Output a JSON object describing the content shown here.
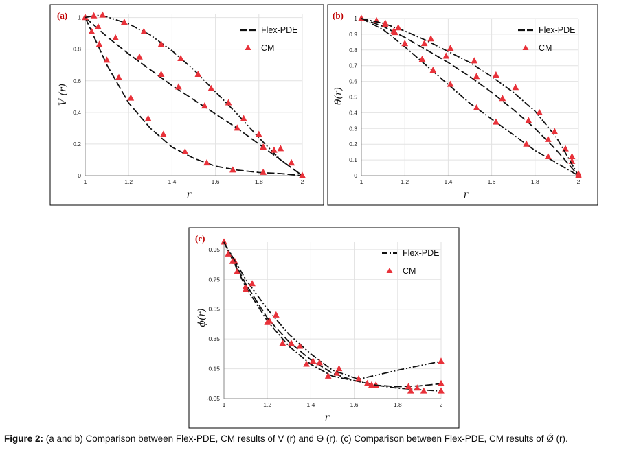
{
  "figure": {
    "caption_label": "Figure 2:",
    "caption_text": " (a and b) Comparison between Flex-PDE, CM results of V (r) and Ɵ (r). (c) Comparison between Flex-PDE, CM results of Ǿ (r)."
  },
  "colors": {
    "marker": "#e8323a",
    "line": "#111111",
    "frame": "#000000",
    "grid": "#e2e2e2"
  },
  "chart_data": [
    {
      "panel_label": "(a)",
      "type": "line",
      "xlabel": "r",
      "ylabel": "V (r)",
      "xlim": [
        1,
        2
      ],
      "ylim": [
        0,
        1.02
      ],
      "x_ticks": [
        "1",
        "1.2",
        "1.4",
        "1.6",
        "1.8",
        "2"
      ],
      "y_ticks": [
        "0",
        "0.2",
        "0.4",
        "0.6",
        "0.8",
        "1"
      ],
      "grid": true,
      "legend": {
        "position": "top-right",
        "entries": [
          "Flex-PDE",
          "CM"
        ]
      },
      "series": [
        {
          "style": "dash",
          "line": [
            [
              1,
              1
            ],
            [
              1.1,
              0.7
            ],
            [
              1.2,
              0.46
            ],
            [
              1.3,
              0.3
            ],
            [
              1.4,
              0.18
            ],
            [
              1.5,
              0.11
            ],
            [
              1.6,
              0.06
            ],
            [
              1.7,
              0.035
            ],
            [
              1.8,
              0.02
            ],
            [
              1.9,
              0.013
            ],
            [
              2,
              0
            ]
          ],
          "markers": [
            [
              1,
              1
            ],
            [
              1.03,
              0.91
            ],
            [
              1.065,
              0.83
            ],
            [
              1.1,
              0.73
            ],
            [
              1.155,
              0.62
            ],
            [
              1.21,
              0.49
            ],
            [
              1.29,
              0.36
            ],
            [
              1.36,
              0.26
            ],
            [
              1.46,
              0.15
            ],
            [
              1.56,
              0.08
            ],
            [
              1.68,
              0.035
            ],
            [
              1.82,
              0.02
            ],
            [
              2,
              0
            ]
          ]
        },
        {
          "style": "dash",
          "line": [
            [
              1,
              1
            ],
            [
              1.1,
              0.88
            ],
            [
              1.2,
              0.77
            ],
            [
              1.3,
              0.67
            ],
            [
              1.4,
              0.57
            ],
            [
              1.5,
              0.48
            ],
            [
              1.6,
              0.39
            ],
            [
              1.7,
              0.3
            ],
            [
              1.8,
              0.2
            ],
            [
              1.9,
              0.1
            ],
            [
              2,
              0
            ]
          ],
          "markers": [
            [
              1,
              1
            ],
            [
              1.06,
              0.94
            ],
            [
              1.14,
              0.87
            ],
            [
              1.25,
              0.75
            ],
            [
              1.35,
              0.64
            ],
            [
              1.43,
              0.56
            ],
            [
              1.55,
              0.44
            ],
            [
              1.7,
              0.3
            ],
            [
              1.82,
              0.18
            ],
            [
              1.9,
              0.17
            ],
            [
              1.95,
              0.08
            ],
            [
              2,
              0
            ]
          ]
        },
        {
          "style": "dashdotdot",
          "line": [
            [
              1,
              1
            ],
            [
              1.05,
              1.015
            ],
            [
              1.1,
              1.005
            ],
            [
              1.2,
              0.96
            ],
            [
              1.3,
              0.89
            ],
            [
              1.4,
              0.79
            ],
            [
              1.5,
              0.67
            ],
            [
              1.6,
              0.53
            ],
            [
              1.7,
              0.39
            ],
            [
              1.8,
              0.24
            ],
            [
              1.9,
              0.1
            ],
            [
              2,
              0
            ]
          ],
          "markers": [
            [
              1.04,
              1.01
            ],
            [
              1.08,
              1.015
            ],
            [
              1.18,
              0.97
            ],
            [
              1.27,
              0.91
            ],
            [
              1.35,
              0.83
            ],
            [
              1.44,
              0.74
            ],
            [
              1.52,
              0.64
            ],
            [
              1.58,
              0.55
            ],
            [
              1.66,
              0.46
            ],
            [
              1.73,
              0.36
            ],
            [
              1.8,
              0.26
            ],
            [
              1.87,
              0.16
            ],
            [
              1.95,
              0.08
            ],
            [
              2,
              0
            ]
          ]
        }
      ]
    },
    {
      "panel_label": "(b)",
      "type": "line",
      "xlabel": "r",
      "ylabel": "θ(r)",
      "xlim": [
        1,
        2
      ],
      "ylim": [
        0,
        1
      ],
      "x_ticks": [
        "1",
        "1.2",
        "1.4",
        "1.6",
        "1.8",
        "2"
      ],
      "y_ticks": [
        "0",
        "0.1",
        "0.2",
        "0.3",
        "0.4",
        "0.5",
        "0.6",
        "0.7",
        "0.8",
        "0.9",
        "1"
      ],
      "grid": true,
      "legend": {
        "position": "top-right",
        "entries": [
          "Flex-PDE",
          "CM"
        ]
      },
      "series": [
        {
          "style": "dashdot",
          "line": [
            [
              1,
              1
            ],
            [
              1.1,
              0.93
            ],
            [
              1.2,
              0.82
            ],
            [
              1.3,
              0.7
            ],
            [
              1.4,
              0.58
            ],
            [
              1.5,
              0.46
            ],
            [
              1.6,
              0.36
            ],
            [
              1.7,
              0.26
            ],
            [
              1.8,
              0.16
            ],
            [
              1.9,
              0.08
            ],
            [
              2,
              0
            ]
          ],
          "markers": [
            [
              1,
              1
            ],
            [
              1.07,
              0.985
            ],
            [
              1.155,
              0.91
            ],
            [
              1.2,
              0.84
            ],
            [
              1.28,
              0.74
            ],
            [
              1.33,
              0.67
            ],
            [
              1.41,
              0.58
            ],
            [
              1.53,
              0.43
            ],
            [
              1.62,
              0.34
            ],
            [
              1.76,
              0.2
            ],
            [
              1.86,
              0.12
            ],
            [
              2,
              0
            ]
          ]
        },
        {
          "style": "dash",
          "line": [
            [
              1,
              1
            ],
            [
              1.1,
              0.95
            ],
            [
              1.2,
              0.88
            ],
            [
              1.3,
              0.8
            ],
            [
              1.4,
              0.72
            ],
            [
              1.5,
              0.63
            ],
            [
              1.6,
              0.53
            ],
            [
              1.7,
              0.42
            ],
            [
              1.8,
              0.3
            ],
            [
              1.9,
              0.16
            ],
            [
              2,
              0
            ]
          ],
          "markers": [
            [
              1.11,
              0.96
            ],
            [
              1.15,
              0.92
            ],
            [
              1.2,
              0.84
            ],
            [
              1.29,
              0.84
            ],
            [
              1.39,
              0.76
            ],
            [
              1.53,
              0.63
            ],
            [
              1.65,
              0.49
            ],
            [
              1.77,
              0.35
            ],
            [
              1.86,
              0.23
            ],
            [
              1.94,
              0.17
            ],
            [
              1.97,
              0.09
            ],
            [
              2,
              0
            ]
          ]
        },
        {
          "style": "dashdot",
          "line": [
            [
              1,
              1
            ],
            [
              1.1,
              0.97
            ],
            [
              1.2,
              0.92
            ],
            [
              1.3,
              0.86
            ],
            [
              1.4,
              0.79
            ],
            [
              1.5,
              0.72
            ],
            [
              1.6,
              0.63
            ],
            [
              1.7,
              0.53
            ],
            [
              1.8,
              0.41
            ],
            [
              1.9,
              0.24
            ],
            [
              2,
              0
            ]
          ],
          "markers": [
            [
              1.11,
              0.97
            ],
            [
              1.17,
              0.94
            ],
            [
              1.32,
              0.87
            ],
            [
              1.41,
              0.81
            ],
            [
              1.52,
              0.73
            ],
            [
              1.62,
              0.64
            ],
            [
              1.71,
              0.56
            ],
            [
              1.82,
              0.4
            ],
            [
              1.89,
              0.28
            ],
            [
              1.97,
              0.12
            ],
            [
              2,
              0.01
            ]
          ]
        }
      ]
    },
    {
      "panel_label": "(c)",
      "type": "line",
      "xlabel": "r",
      "ylabel": "ϕ(r)",
      "xlim": [
        1,
        2
      ],
      "ylim": [
        -0.05,
        1
      ],
      "x_ticks": [
        "1",
        "1.2",
        "1.4",
        "1.6",
        "1.8",
        "2"
      ],
      "y_ticks": [
        "-0.05",
        "0.15",
        "0.35",
        "0.55",
        "0.75",
        "0.95"
      ],
      "grid": true,
      "legend": {
        "position": "top-right",
        "entries": [
          "Flex-PDE",
          "CM"
        ]
      },
      "series": [
        {
          "style": "dashdot",
          "line": [
            [
              1,
              1
            ],
            [
              1.1,
              0.7
            ],
            [
              1.2,
              0.47
            ],
            [
              1.3,
              0.3
            ],
            [
              1.4,
              0.18
            ],
            [
              1.5,
              0.1
            ],
            [
              1.6,
              0.07
            ],
            [
              1.7,
              0.04
            ],
            [
              1.8,
              0.02
            ],
            [
              1.9,
              0.01
            ],
            [
              2,
              0
            ]
          ],
          "markers": [
            [
              1,
              1
            ],
            [
              1.05,
              0.87
            ],
            [
              1.1,
              0.7
            ],
            [
              1.2,
              0.46
            ],
            [
              1.27,
              0.32
            ],
            [
              1.38,
              0.18
            ],
            [
              1.48,
              0.1
            ],
            [
              1.62,
              0.08
            ],
            [
              1.7,
              0.04
            ],
            [
              1.86,
              0
            ],
            [
              1.92,
              0
            ],
            [
              2,
              0
            ]
          ]
        },
        {
          "style": "dash",
          "line": [
            [
              1,
              1
            ],
            [
              1.1,
              0.72
            ],
            [
              1.2,
              0.49
            ],
            [
              1.3,
              0.33
            ],
            [
              1.4,
              0.21
            ],
            [
              1.5,
              0.12
            ],
            [
              1.6,
              0.07
            ],
            [
              1.7,
              0.04
            ],
            [
              1.8,
              0.03
            ],
            [
              1.9,
              0.035
            ],
            [
              2,
              0.05
            ]
          ],
          "markers": [
            [
              1.02,
              0.92
            ],
            [
              1.04,
              0.87
            ],
            [
              1.1,
              0.68
            ],
            [
              1.21,
              0.47
            ],
            [
              1.31,
              0.32
            ],
            [
              1.41,
              0.2
            ],
            [
              1.52,
              0.12
            ],
            [
              1.66,
              0.05
            ],
            [
              1.85,
              0.03
            ],
            [
              1.89,
              0.02
            ],
            [
              2,
              0.05
            ]
          ]
        },
        {
          "style": "dashdotdot",
          "line": [
            [
              1,
              1
            ],
            [
              1.1,
              0.75
            ],
            [
              1.2,
              0.55
            ],
            [
              1.3,
              0.38
            ],
            [
              1.4,
              0.25
            ],
            [
              1.5,
              0.14
            ],
            [
              1.62,
              0.08
            ],
            [
              1.8,
              0.14
            ],
            [
              2,
              0.2
            ]
          ],
          "markers": [
            [
              1.06,
              0.8
            ],
            [
              1.13,
              0.72
            ],
            [
              1.24,
              0.51
            ],
            [
              1.35,
              0.3
            ],
            [
              1.44,
              0.19
            ],
            [
              1.53,
              0.15
            ],
            [
              1.62,
              0.08
            ],
            [
              1.68,
              0.04
            ],
            [
              2,
              0.2
            ]
          ]
        }
      ]
    }
  ]
}
